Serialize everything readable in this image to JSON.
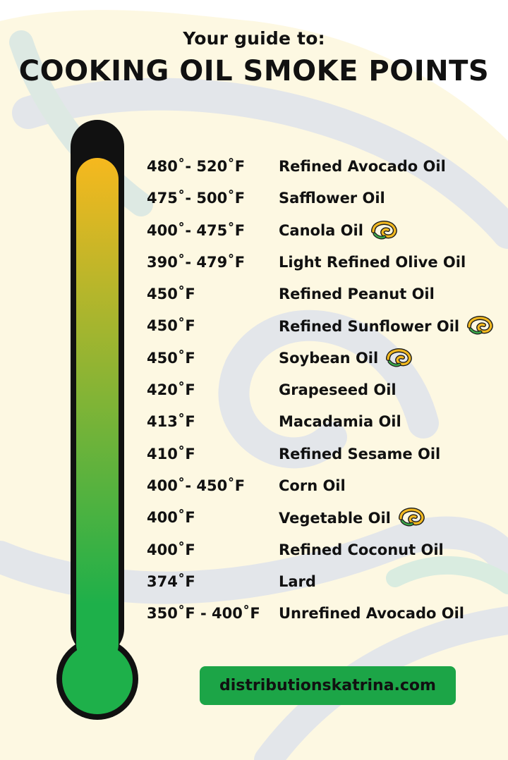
{
  "header": {
    "subtitle": "Your guide to:",
    "title": "COOKING OIL SMOKE POINTS"
  },
  "colors": {
    "thermometer_top": "#f6b81e",
    "thermometer_bottom": "#1eb04a",
    "outline": "#111111",
    "button": "#1ca547",
    "background_swirl": "#fdf8e2",
    "background_accent": "#e3e6ea"
  },
  "oils": [
    {
      "temp": "480˚- 520˚F",
      "name": "Refined Avocado Oil",
      "icon": false
    },
    {
      "temp": "475˚- 500˚F",
      "name": "Safflower Oil",
      "icon": false
    },
    {
      "temp": "400˚- 475˚F",
      "name": "Canola Oil",
      "icon": true
    },
    {
      "temp": "390˚- 479˚F",
      "name": "Light Refined Olive Oil",
      "icon": false
    },
    {
      "temp": "450˚F",
      "name": "Refined Peanut Oil",
      "icon": false
    },
    {
      "temp": "450˚F",
      "name": "Refined Sunflower Oil",
      "icon": true
    },
    {
      "temp": "450˚F",
      "name": "Soybean Oil",
      "icon": true
    },
    {
      "temp": "420˚F",
      "name": "Grapeseed Oil",
      "icon": false
    },
    {
      "temp": "413˚F",
      "name": "Macadamia Oil",
      "icon": false
    },
    {
      "temp": "410˚F",
      "name": "Refined Sesame Oil",
      "icon": false
    },
    {
      "temp": "400˚- 450˚F",
      "name": "Corn Oil",
      "icon": false
    },
    {
      "temp": "400˚F",
      "name": "Vegetable Oil",
      "icon": true
    },
    {
      "temp": "400˚F",
      "name": "Refined Coconut Oil",
      "icon": false
    },
    {
      "temp": "374˚F",
      "name": "Lard",
      "icon": false
    },
    {
      "temp": "350˚F - 400˚F",
      "name": "Unrefined Avocado Oil",
      "icon": false
    }
  ],
  "icons": {
    "oil_mark": "swirl-logo-icon"
  },
  "footer": {
    "website": "distributionskatrina.com"
  }
}
